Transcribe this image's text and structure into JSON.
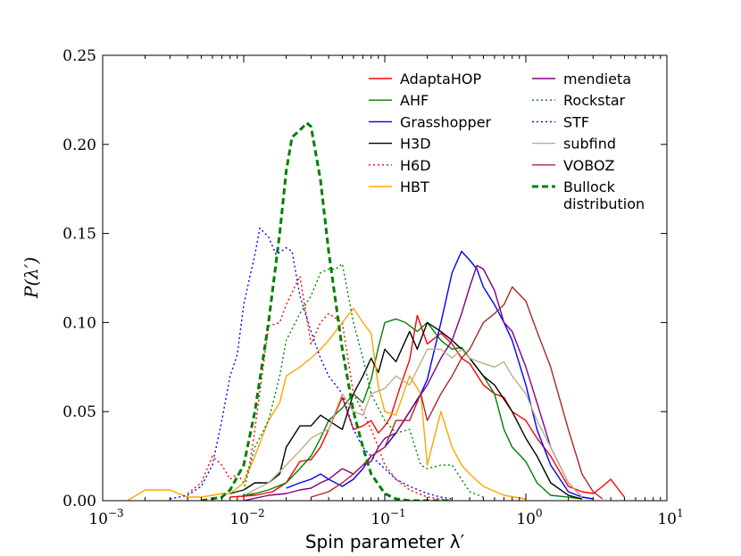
{
  "chart_data": {
    "type": "line",
    "xscale": "log",
    "xlim": [
      0.001,
      10
    ],
    "ylim": [
      0,
      0.25
    ],
    "x_tick_labels": [
      {
        "base": "10",
        "exp": "−3",
        "value": 0.001
      },
      {
        "base": "10",
        "exp": "−2",
        "value": 0.01
      },
      {
        "base": "10",
        "exp": "−1",
        "value": 0.1
      },
      {
        "base": "10",
        "exp": "0",
        "value": 1
      },
      {
        "base": "10",
        "exp": "1",
        "value": 10
      }
    ],
    "y_tick_labels": [
      "0.00",
      "0.05",
      "0.10",
      "0.15",
      "0.20",
      "0.25"
    ],
    "y_ticks": [
      0,
      0.05,
      0.1,
      0.15,
      0.2,
      0.25
    ],
    "xlabel": "Spin parameter λ′",
    "ylabel": "P(λ′)",
    "legend_position": "top-right",
    "series": [
      {
        "name": "AdaptaHOP",
        "color": "#ff0000",
        "style": "solid",
        "legend_col": 0,
        "x": [
          0.008,
          0.012,
          0.016,
          0.02,
          0.025,
          0.03,
          0.035,
          0.04,
          0.05,
          0.06,
          0.07,
          0.08,
          0.09,
          0.1,
          0.11,
          0.13,
          0.15,
          0.17,
          0.2,
          0.25,
          0.3,
          0.35,
          0.4,
          0.5,
          0.6,
          0.7,
          0.8,
          1.0,
          1.2,
          1.5,
          2.0,
          2.5,
          3.0,
          3.5,
          4.0,
          5.0
        ],
        "y": [
          0.002,
          0.003,
          0.005,
          0.01,
          0.022,
          0.023,
          0.03,
          0.04,
          0.058,
          0.04,
          0.042,
          0.045,
          0.038,
          0.042,
          0.047,
          0.065,
          0.079,
          0.104,
          0.088,
          0.094,
          0.088,
          0.08,
          0.077,
          0.065,
          0.06,
          0.058,
          0.05,
          0.045,
          0.035,
          0.025,
          0.008,
          0.005,
          0.004,
          0.008,
          0.012,
          0.002
        ]
      },
      {
        "name": "AHF",
        "color": "#008000",
        "style": "solid",
        "legend_col": 0,
        "x": [
          0.01,
          0.012,
          0.015,
          0.02,
          0.025,
          0.03,
          0.035,
          0.04,
          0.05,
          0.06,
          0.07,
          0.08,
          0.09,
          0.1,
          0.12,
          0.14,
          0.17,
          0.2,
          0.25,
          0.3,
          0.35,
          0.4,
          0.5,
          0.6,
          0.7,
          0.8,
          1.0,
          1.2,
          1.5,
          2.0,
          2.5
        ],
        "y": [
          0.003,
          0.004,
          0.006,
          0.01,
          0.018,
          0.025,
          0.035,
          0.045,
          0.052,
          0.06,
          0.055,
          0.068,
          0.086,
          0.1,
          0.102,
          0.1,
          0.095,
          0.1,
          0.09,
          0.085,
          0.086,
          0.08,
          0.07,
          0.06,
          0.04,
          0.03,
          0.022,
          0.01,
          0.003,
          0.002,
          0.001
        ]
      },
      {
        "name": "Grasshopper",
        "color": "#0000ff",
        "style": "solid",
        "legend_col": 0,
        "x": [
          0.02,
          0.025,
          0.03,
          0.035,
          0.04,
          0.05,
          0.06,
          0.07,
          0.08,
          0.1,
          0.12,
          0.15,
          0.18,
          0.2,
          0.25,
          0.3,
          0.35,
          0.4,
          0.45,
          0.5,
          0.6,
          0.7,
          0.8,
          1.0,
          1.2,
          1.5,
          2.0,
          2.5,
          3.0
        ],
        "y": [
          0.007,
          0.01,
          0.012,
          0.015,
          0.012,
          0.008,
          0.012,
          0.018,
          0.025,
          0.03,
          0.038,
          0.05,
          0.06,
          0.068,
          0.1,
          0.128,
          0.14,
          0.135,
          0.13,
          0.12,
          0.11,
          0.1,
          0.09,
          0.065,
          0.04,
          0.02,
          0.005,
          0.002,
          0.001
        ]
      },
      {
        "name": "H3D",
        "color": "#000000",
        "style": "solid",
        "legend_col": 0,
        "x": [
          0.008,
          0.01,
          0.012,
          0.015,
          0.018,
          0.02,
          0.025,
          0.03,
          0.035,
          0.04,
          0.05,
          0.06,
          0.07,
          0.08,
          0.09,
          0.1,
          0.12,
          0.15,
          0.17,
          0.2,
          0.25,
          0.3,
          0.35,
          0.4,
          0.5,
          0.6,
          0.8,
          1.0,
          1.2,
          1.5,
          2.0,
          2.5
        ],
        "y": [
          0.004,
          0.006,
          0.01,
          0.01,
          0.015,
          0.03,
          0.042,
          0.042,
          0.048,
          0.045,
          0.04,
          0.06,
          0.07,
          0.08,
          0.072,
          0.085,
          0.078,
          0.095,
          0.085,
          0.1,
          0.095,
          0.09,
          0.085,
          0.08,
          0.07,
          0.065,
          0.05,
          0.035,
          0.025,
          0.01,
          0.003,
          0.001
        ]
      },
      {
        "name": "H6D",
        "color": "#ff0000",
        "style": "dotted",
        "legend_col": 0,
        "x": [
          0.004,
          0.005,
          0.006,
          0.007,
          0.008,
          0.009,
          0.01,
          0.011,
          0.012,
          0.015,
          0.018,
          0.02,
          0.025,
          0.03,
          0.035,
          0.04,
          0.05,
          0.06,
          0.07,
          0.08,
          0.09,
          0.1,
          0.12,
          0.15,
          0.2,
          0.25,
          0.3
        ],
        "y": [
          0.004,
          0.01,
          0.025,
          0.02,
          0.012,
          0.015,
          0.01,
          0.02,
          0.04,
          0.098,
          0.1,
          0.11,
          0.126,
          0.088,
          0.1,
          0.105,
          0.1,
          0.06,
          0.05,
          0.04,
          0.03,
          0.02,
          0.012,
          0.006,
          0.002,
          0.001,
          0.0
        ]
      },
      {
        "name": "HBT",
        "color": "#ffa500",
        "style": "solid",
        "legend_col": 0,
        "x": [
          0.0015,
          0.002,
          0.0025,
          0.003,
          0.004,
          0.005,
          0.006,
          0.007,
          0.008,
          0.01,
          0.012,
          0.015,
          0.018,
          0.02,
          0.025,
          0.03,
          0.035,
          0.04,
          0.05,
          0.06,
          0.07,
          0.08,
          0.09,
          0.1,
          0.12,
          0.15,
          0.18,
          0.2,
          0.25,
          0.3,
          0.35,
          0.4,
          0.5,
          0.7,
          1.0
        ],
        "y": [
          0.0,
          0.006,
          0.006,
          0.006,
          0.002,
          0.002,
          0.003,
          0.004,
          0.004,
          0.01,
          0.025,
          0.045,
          0.055,
          0.07,
          0.075,
          0.08,
          0.085,
          0.09,
          0.1,
          0.108,
          0.1,
          0.094,
          0.064,
          0.05,
          0.048,
          0.07,
          0.06,
          0.02,
          0.05,
          0.03,
          0.02,
          0.015,
          0.008,
          0.003,
          0.001
        ]
      },
      {
        "name": "mendieta",
        "color": "#800080",
        "style": "solid",
        "legend_col": 1,
        "x": [
          0.01,
          0.015,
          0.02,
          0.025,
          0.03,
          0.035,
          0.04,
          0.05,
          0.06,
          0.07,
          0.08,
          0.09,
          0.1,
          0.12,
          0.15,
          0.2,
          0.25,
          0.3,
          0.35,
          0.4,
          0.45,
          0.5,
          0.6,
          0.7,
          0.8,
          1.0,
          1.2,
          1.5,
          2.0,
          2.5
        ],
        "y": [
          0.0,
          0.003,
          0.004,
          0.006,
          0.007,
          0.01,
          0.012,
          0.018,
          0.015,
          0.02,
          0.022,
          0.03,
          0.035,
          0.038,
          0.05,
          0.065,
          0.08,
          0.09,
          0.105,
          0.12,
          0.132,
          0.13,
          0.118,
          0.1,
          0.095,
          0.075,
          0.055,
          0.03,
          0.01,
          0.002
        ]
      },
      {
        "name": "Rockstar",
        "color": "#008000",
        "style": "dotted",
        "legend_col": 1,
        "x": [
          0.008,
          0.01,
          0.012,
          0.015,
          0.018,
          0.02,
          0.025,
          0.03,
          0.035,
          0.04,
          0.045,
          0.05,
          0.06,
          0.07,
          0.08,
          0.1,
          0.12,
          0.15,
          0.18,
          0.2,
          0.25,
          0.3,
          0.35,
          0.4,
          0.5
        ],
        "y": [
          0.004,
          0.006,
          0.03,
          0.045,
          0.07,
          0.09,
          0.105,
          0.115,
          0.128,
          0.13,
          0.13,
          0.133,
          0.1,
          0.08,
          0.06,
          0.045,
          0.038,
          0.04,
          0.02,
          0.018,
          0.02,
          0.02,
          0.012,
          0.005,
          0.002
        ]
      },
      {
        "name": "STF",
        "color": "#0000ff",
        "style": "dotted",
        "legend_col": 1,
        "x": [
          0.003,
          0.004,
          0.005,
          0.006,
          0.007,
          0.008,
          0.009,
          0.01,
          0.011,
          0.012,
          0.013,
          0.015,
          0.017,
          0.02,
          0.022,
          0.025,
          0.03,
          0.035,
          0.04,
          0.05,
          0.06,
          0.07,
          0.08,
          0.1,
          0.12,
          0.15,
          0.2,
          0.25,
          0.3
        ],
        "y": [
          0.001,
          0.003,
          0.008,
          0.02,
          0.045,
          0.07,
          0.082,
          0.11,
          0.125,
          0.138,
          0.153,
          0.148,
          0.138,
          0.142,
          0.14,
          0.115,
          0.095,
          0.08,
          0.07,
          0.06,
          0.04,
          0.03,
          0.025,
          0.018,
          0.012,
          0.008,
          0.004,
          0.002,
          0.001
        ]
      },
      {
        "name": "subfind",
        "color": "#bdb08a",
        "style": "solid",
        "legend_col": 1,
        "x": [
          0.01,
          0.015,
          0.02,
          0.025,
          0.03,
          0.035,
          0.04,
          0.05,
          0.06,
          0.07,
          0.08,
          0.1,
          0.12,
          0.15,
          0.2,
          0.25,
          0.3,
          0.35,
          0.4,
          0.5,
          0.6,
          0.7,
          0.8,
          1.0,
          1.2,
          1.5,
          2.0,
          2.5
        ],
        "y": [
          0.003,
          0.01,
          0.02,
          0.028,
          0.035,
          0.038,
          0.04,
          0.06,
          0.05,
          0.048,
          0.06,
          0.063,
          0.07,
          0.065,
          0.085,
          0.085,
          0.08,
          0.085,
          0.08,
          0.077,
          0.075,
          0.078,
          0.07,
          0.06,
          0.045,
          0.03,
          0.01,
          0.002
        ]
      },
      {
        "name": "VOBOZ",
        "color": "#a52a2a",
        "style": "solid",
        "legend_col": 1,
        "x": [
          0.03,
          0.04,
          0.05,
          0.06,
          0.07,
          0.08,
          0.1,
          0.12,
          0.15,
          0.18,
          0.2,
          0.25,
          0.3,
          0.35,
          0.4,
          0.5,
          0.6,
          0.7,
          0.8,
          1.0,
          1.2,
          1.5,
          2.0,
          2.5,
          3.0,
          3.5
        ],
        "y": [
          0.002,
          0.005,
          0.01,
          0.015,
          0.02,
          0.025,
          0.03,
          0.045,
          0.045,
          0.06,
          0.045,
          0.06,
          0.07,
          0.08,
          0.085,
          0.1,
          0.105,
          0.11,
          0.12,
          0.112,
          0.095,
          0.075,
          0.04,
          0.015,
          0.005,
          0.001
        ]
      },
      {
        "name": "Bullock distribution",
        "legend_lines": [
          "Bullock",
          "distribution"
        ],
        "color": "#008000",
        "style": "dashed",
        "legend_col": 1,
        "x": [
          0.005,
          0.007,
          0.008,
          0.01,
          0.012,
          0.015,
          0.018,
          0.02,
          0.022,
          0.025,
          0.028,
          0.03,
          0.035,
          0.04,
          0.05,
          0.06,
          0.07,
          0.08,
          0.1,
          0.12,
          0.15,
          0.2,
          0.3
        ],
        "y": [
          0.0,
          0.002,
          0.006,
          0.02,
          0.05,
          0.1,
          0.15,
          0.185,
          0.204,
          0.208,
          0.212,
          0.21,
          0.18,
          0.14,
          0.085,
          0.05,
          0.03,
          0.015,
          0.004,
          0.001,
          0.0,
          0.0,
          0.0
        ]
      }
    ]
  }
}
